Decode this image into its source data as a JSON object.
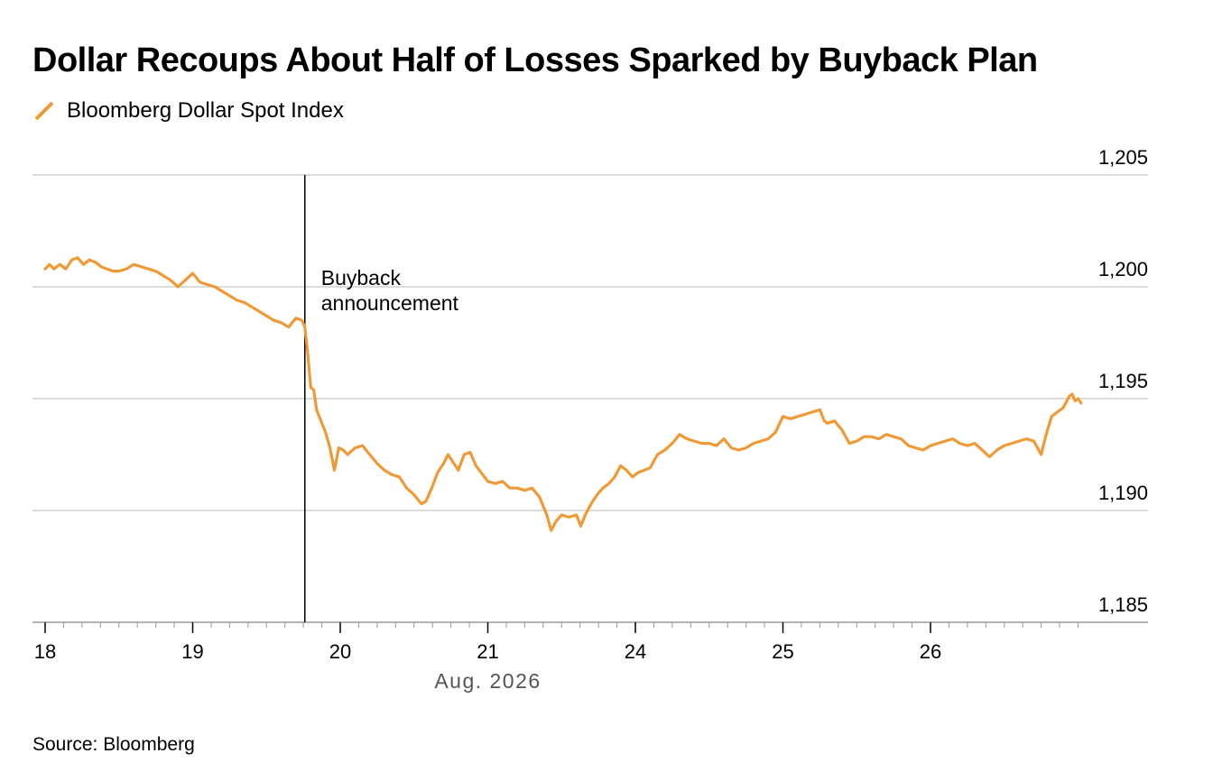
{
  "chart_data": {
    "type": "line",
    "title": "Dollar Recoups About Half of Losses Sparked by Buyback Plan",
    "source": "Source: Bloomberg",
    "xlabel": "Aug. 2026",
    "ylim": [
      1185,
      1205
    ],
    "yticks": [
      "1,185",
      "1,190",
      "1,195",
      "1,200",
      "1,205"
    ],
    "ytick_values": [
      1185,
      1190,
      1195,
      1200,
      1205
    ],
    "xticks": [
      "18",
      "19",
      "20",
      "21",
      "24",
      "25",
      "26"
    ],
    "grid": "horizontal",
    "legend_position": "top-left",
    "colors": {
      "series": "#f09a37",
      "grid": "#c8c8c8",
      "axis": "#000000"
    },
    "annotation": {
      "lines": [
        "Buyback",
        "announcement"
      ],
      "x": 1.76
    },
    "series": [
      {
        "name": "Bloomberg Dollar Spot Index",
        "points": [
          [
            0.0,
            1200.8
          ],
          [
            0.03,
            1201.0
          ],
          [
            0.06,
            1200.8
          ],
          [
            0.1,
            1201.0
          ],
          [
            0.14,
            1200.8
          ],
          [
            0.18,
            1201.2
          ],
          [
            0.22,
            1201.3
          ],
          [
            0.26,
            1201.0
          ],
          [
            0.3,
            1201.2
          ],
          [
            0.34,
            1201.1
          ],
          [
            0.38,
            1200.9
          ],
          [
            0.42,
            1200.8
          ],
          [
            0.46,
            1200.7
          ],
          [
            0.5,
            1200.7
          ],
          [
            0.55,
            1200.8
          ],
          [
            0.6,
            1201.0
          ],
          [
            0.65,
            1200.9
          ],
          [
            0.7,
            1200.8
          ],
          [
            0.75,
            1200.7
          ],
          [
            0.8,
            1200.5
          ],
          [
            0.85,
            1200.3
          ],
          [
            0.9,
            1200.0
          ],
          [
            0.95,
            1200.3
          ],
          [
            1.0,
            1200.6
          ],
          [
            1.05,
            1200.2
          ],
          [
            1.1,
            1200.1
          ],
          [
            1.15,
            1200.0
          ],
          [
            1.2,
            1199.8
          ],
          [
            1.25,
            1199.6
          ],
          [
            1.3,
            1199.4
          ],
          [
            1.35,
            1199.3
          ],
          [
            1.4,
            1199.1
          ],
          [
            1.45,
            1198.9
          ],
          [
            1.5,
            1198.7
          ],
          [
            1.55,
            1198.5
          ],
          [
            1.6,
            1198.4
          ],
          [
            1.65,
            1198.2
          ],
          [
            1.7,
            1198.6
          ],
          [
            1.74,
            1198.5
          ],
          [
            1.76,
            1198.2
          ],
          [
            1.78,
            1197.0
          ],
          [
            1.8,
            1195.5
          ],
          [
            1.82,
            1195.4
          ],
          [
            1.84,
            1194.5
          ],
          [
            1.87,
            1194.0
          ],
          [
            1.9,
            1193.5
          ],
          [
            1.93,
            1192.8
          ],
          [
            1.96,
            1191.8
          ],
          [
            1.99,
            1192.8
          ],
          [
            2.02,
            1192.7
          ],
          [
            2.05,
            1192.5
          ],
          [
            2.1,
            1192.8
          ],
          [
            2.15,
            1192.9
          ],
          [
            2.2,
            1192.5
          ],
          [
            2.25,
            1192.1
          ],
          [
            2.3,
            1191.8
          ],
          [
            2.35,
            1191.6
          ],
          [
            2.4,
            1191.5
          ],
          [
            2.45,
            1191.0
          ],
          [
            2.5,
            1190.7
          ],
          [
            2.55,
            1190.3
          ],
          [
            2.58,
            1190.4
          ],
          [
            2.62,
            1191.0
          ],
          [
            2.66,
            1191.7
          ],
          [
            2.7,
            1192.1
          ],
          [
            2.73,
            1192.5
          ],
          [
            2.76,
            1192.2
          ],
          [
            2.8,
            1191.8
          ],
          [
            2.84,
            1192.5
          ],
          [
            2.88,
            1192.6
          ],
          [
            2.92,
            1192.0
          ],
          [
            3.0,
            1191.3
          ],
          [
            3.05,
            1191.2
          ],
          [
            3.1,
            1191.3
          ],
          [
            3.15,
            1191.0
          ],
          [
            3.2,
            1191.0
          ],
          [
            3.25,
            1190.9
          ],
          [
            3.3,
            1191.0
          ],
          [
            3.35,
            1190.6
          ],
          [
            3.4,
            1189.8
          ],
          [
            3.43,
            1189.1
          ],
          [
            3.46,
            1189.5
          ],
          [
            3.5,
            1189.8
          ],
          [
            3.55,
            1189.7
          ],
          [
            3.6,
            1189.8
          ],
          [
            3.63,
            1189.3
          ],
          [
            3.66,
            1189.8
          ],
          [
            3.7,
            1190.3
          ],
          [
            3.74,
            1190.7
          ],
          [
            3.78,
            1191.0
          ],
          [
            3.82,
            1191.2
          ],
          [
            3.86,
            1191.5
          ],
          [
            3.9,
            1192.0
          ],
          [
            3.94,
            1191.8
          ],
          [
            3.98,
            1191.5
          ],
          [
            4.02,
            1191.7
          ],
          [
            4.06,
            1191.8
          ],
          [
            4.1,
            1191.9
          ],
          [
            4.15,
            1192.5
          ],
          [
            4.2,
            1192.7
          ],
          [
            4.25,
            1193.0
          ],
          [
            4.3,
            1193.4
          ],
          [
            4.35,
            1193.2
          ],
          [
            4.4,
            1193.1
          ],
          [
            4.45,
            1193.0
          ],
          [
            4.5,
            1193.0
          ],
          [
            4.55,
            1192.9
          ],
          [
            4.6,
            1193.2
          ],
          [
            4.65,
            1192.8
          ],
          [
            4.7,
            1192.7
          ],
          [
            4.75,
            1192.8
          ],
          [
            4.8,
            1193.0
          ],
          [
            4.85,
            1193.1
          ],
          [
            4.9,
            1193.2
          ],
          [
            4.95,
            1193.5
          ],
          [
            5.0,
            1194.2
          ],
          [
            5.05,
            1194.1
          ],
          [
            5.1,
            1194.2
          ],
          [
            5.15,
            1194.3
          ],
          [
            5.2,
            1194.4
          ],
          [
            5.25,
            1194.5
          ],
          [
            5.28,
            1194.0
          ],
          [
            5.3,
            1193.9
          ],
          [
            5.35,
            1194.0
          ],
          [
            5.4,
            1193.6
          ],
          [
            5.45,
            1193.0
          ],
          [
            5.5,
            1193.1
          ],
          [
            5.55,
            1193.3
          ],
          [
            5.6,
            1193.3
          ],
          [
            5.65,
            1193.2
          ],
          [
            5.7,
            1193.4
          ],
          [
            5.75,
            1193.3
          ],
          [
            5.8,
            1193.2
          ],
          [
            5.85,
            1192.9
          ],
          [
            5.9,
            1192.8
          ],
          [
            5.95,
            1192.7
          ],
          [
            6.0,
            1192.9
          ],
          [
            6.05,
            1193.0
          ],
          [
            6.1,
            1193.1
          ],
          [
            6.15,
            1193.2
          ],
          [
            6.2,
            1193.0
          ],
          [
            6.25,
            1192.9
          ],
          [
            6.3,
            1193.0
          ],
          [
            6.35,
            1192.7
          ],
          [
            6.4,
            1192.4
          ],
          [
            6.45,
            1192.7
          ],
          [
            6.5,
            1192.9
          ],
          [
            6.55,
            1193.0
          ],
          [
            6.6,
            1193.1
          ],
          [
            6.65,
            1193.2
          ],
          [
            6.7,
            1193.1
          ],
          [
            6.75,
            1192.5
          ],
          [
            6.78,
            1193.3
          ],
          [
            6.82,
            1194.2
          ],
          [
            6.86,
            1194.4
          ],
          [
            6.9,
            1194.6
          ],
          [
            6.94,
            1195.1
          ],
          [
            6.96,
            1195.2
          ],
          [
            6.98,
            1194.9
          ],
          [
            7.0,
            1195.0
          ],
          [
            7.02,
            1194.8
          ]
        ]
      }
    ]
  }
}
